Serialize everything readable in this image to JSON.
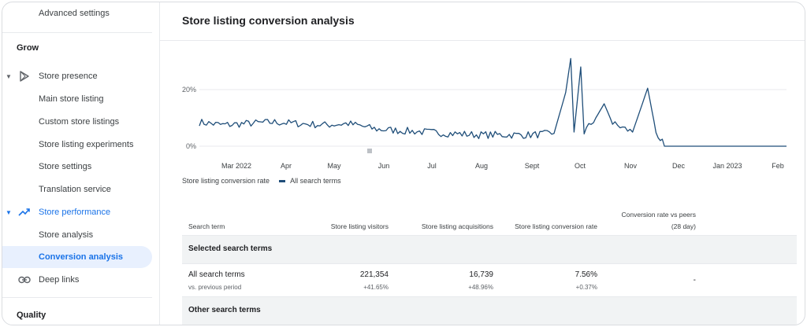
{
  "sidebar": {
    "top_item": "Advanced settings",
    "section_grow": "Grow",
    "store_presence": "Store presence",
    "main_store_listing": "Main store listing",
    "custom_store_listings": "Custom store listings",
    "store_listing_experiments": "Store listing experiments",
    "store_settings": "Store settings",
    "translation_service": "Translation service",
    "store_performance": "Store performance",
    "store_analysis": "Store analysis",
    "conversion_analysis": "Conversion analysis",
    "deep_links": "Deep links",
    "section_quality": "Quality"
  },
  "main": {
    "title": "Store listing conversion analysis",
    "legend": {
      "metric": "Store listing conversion rate",
      "series": "All search terms",
      "series_color": "#1f4e79"
    }
  },
  "chart_data": {
    "type": "line",
    "y_ticks": [
      "20%",
      "0%"
    ],
    "x_ticks": [
      "Mar 2022",
      "Apr",
      "May",
      "Jun",
      "Jul",
      "Aug",
      "Sept",
      "Oct",
      "Nov",
      "Dec",
      "Jan 2023",
      "Feb"
    ],
    "ylim": [
      0,
      30
    ],
    "grid": true,
    "series": [
      {
        "name": "All search terms",
        "color": "#1f4e79",
        "points": [
          [
            "2022-02-15",
            8.5
          ],
          [
            "2022-03-01",
            7.5
          ],
          [
            "2022-03-15",
            8.0
          ],
          [
            "2022-04-01",
            8.5
          ],
          [
            "2022-04-15",
            8.0
          ],
          [
            "2022-05-01",
            7.5
          ],
          [
            "2022-05-15",
            8.0
          ],
          [
            "2022-06-01",
            6.0
          ],
          [
            "2022-06-15",
            5.5
          ],
          [
            "2022-07-01",
            5.0
          ],
          [
            "2022-07-15",
            4.5
          ],
          [
            "2022-08-01",
            4.0
          ],
          [
            "2022-08-15",
            4.0
          ],
          [
            "2022-09-01",
            4.0
          ],
          [
            "2022-09-15",
            4.5
          ],
          [
            "2022-09-22",
            19.0
          ],
          [
            "2022-09-25",
            31.0
          ],
          [
            "2022-09-27",
            5.0
          ],
          [
            "2022-10-01",
            28.0
          ],
          [
            "2022-10-03",
            5.0
          ],
          [
            "2022-10-10",
            10.0
          ],
          [
            "2022-10-15",
            15.0
          ],
          [
            "2022-10-20",
            8.0
          ],
          [
            "2022-11-01",
            5.0
          ],
          [
            "2022-11-10",
            20.5
          ],
          [
            "2022-11-15",
            5.0
          ],
          [
            "2022-11-20",
            0.0
          ],
          [
            "2023-02-01",
            0.0
          ]
        ]
      }
    ]
  },
  "table": {
    "headers": {
      "search_term": "Search term",
      "visitors": "Store listing visitors",
      "acquisitions": "Store listing acquisitions",
      "conversion_rate": "Store listing conversion rate",
      "vs_peers_line1": "Conversion rate vs peers",
      "vs_peers_line2": "(28 day)"
    },
    "group_selected": "Selected search terms",
    "row": {
      "term": "All search terms",
      "term_sub": "vs. previous period",
      "visitors": "221,354",
      "visitors_change": "+41.65%",
      "acquisitions": "16,739",
      "acquisitions_change": "+48.96%",
      "conversion_rate": "7.56%",
      "conversion_rate_change": "+0.37%",
      "vs_peers": "-"
    },
    "group_other": "Other search terms"
  }
}
